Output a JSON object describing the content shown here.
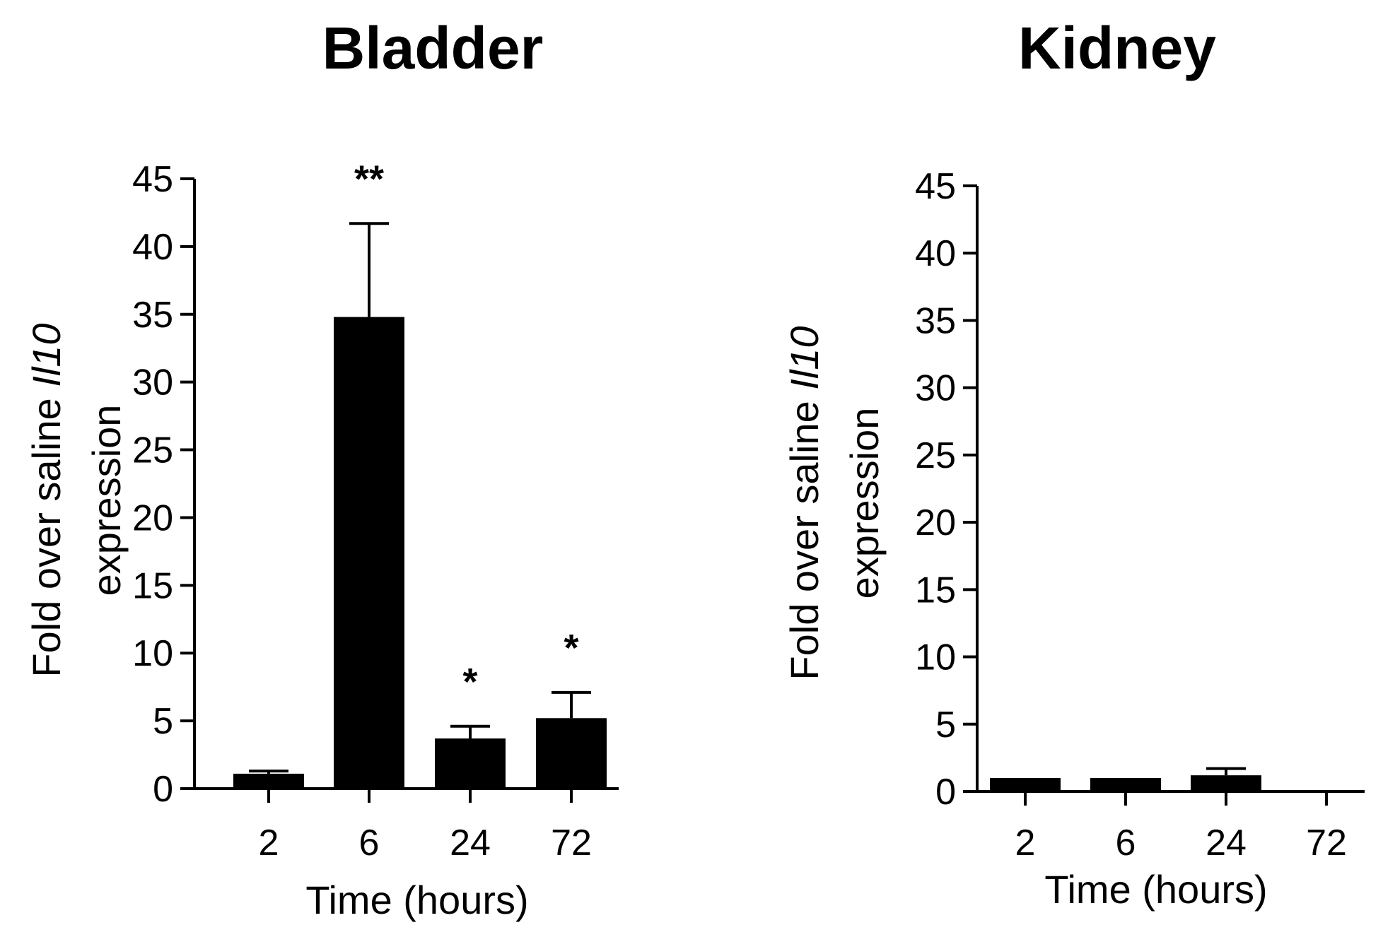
{
  "chart_data": [
    {
      "type": "bar",
      "title": "Bladder",
      "xlabel": "Time (hours)",
      "ylabel_line1_prefix": "Fold over saline ",
      "ylabel_line1_gene": "Il10",
      "ylabel_line2": "expression",
      "categories": [
        "2",
        "6",
        "24",
        "72"
      ],
      "values": [
        1.1,
        34.8,
        3.7,
        5.2
      ],
      "errors": [
        0.2,
        6.9,
        0.9,
        1.9
      ],
      "significance": [
        "",
        "**",
        "*",
        "*"
      ],
      "ylim": [
        0,
        45
      ],
      "yticks": [
        0,
        5,
        10,
        15,
        20,
        25,
        30,
        35,
        40,
        45
      ],
      "color": "#000000"
    },
    {
      "type": "bar",
      "title": "Kidney",
      "xlabel": "Time (hours)",
      "ylabel_line1_prefix": "Fold over saline ",
      "ylabel_line1_gene": "Il10",
      "ylabel_line2": "expression",
      "categories": [
        "2",
        "6",
        "24",
        "72"
      ],
      "values": [
        1.0,
        1.0,
        1.2,
        0.1
      ],
      "errors": [
        0.0,
        0.0,
        0.5,
        0.0
      ],
      "significance": [
        "",
        "",
        "",
        ""
      ],
      "ylim": [
        0,
        45
      ],
      "yticks": [
        0,
        5,
        10,
        15,
        20,
        25,
        30,
        35,
        40,
        45
      ],
      "color": "#000000"
    }
  ]
}
